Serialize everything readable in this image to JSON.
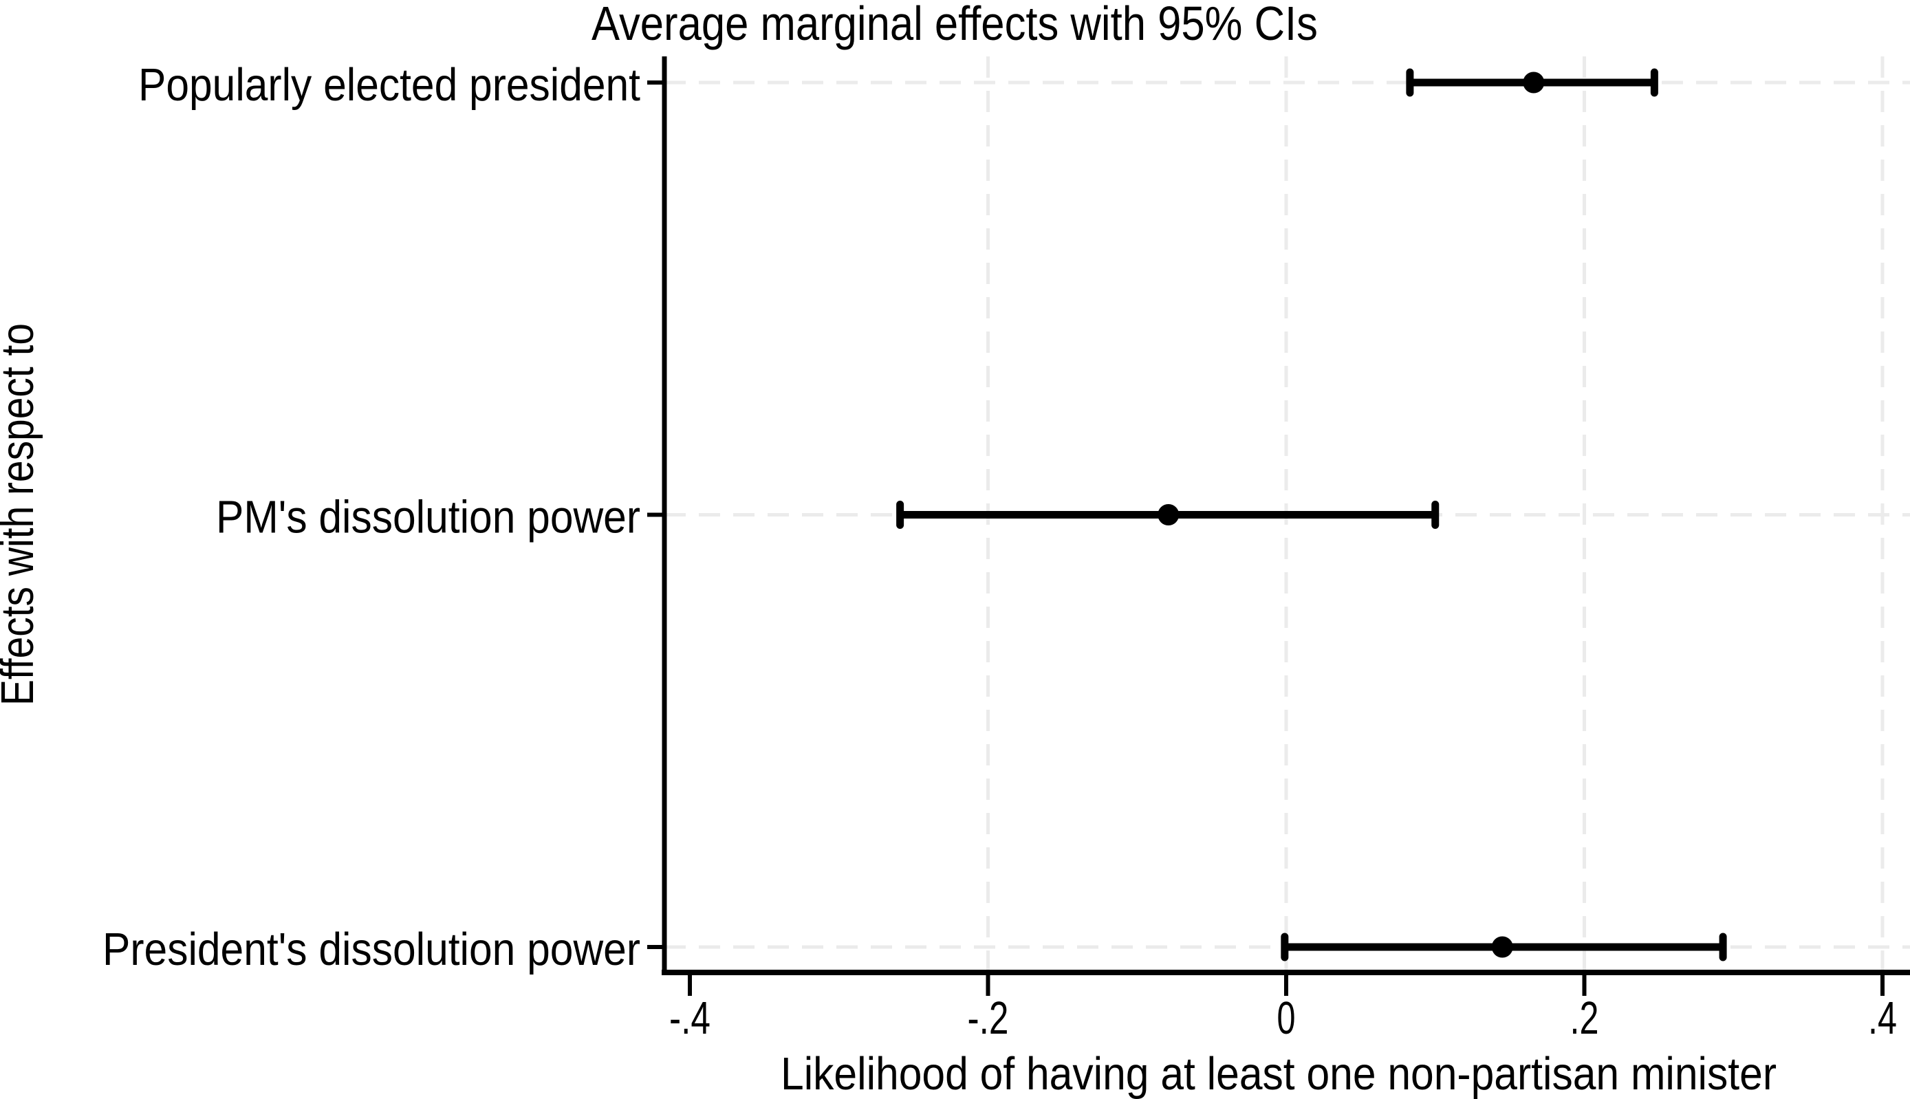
{
  "figure": {
    "background_color": "#ffffff",
    "text_color": "#000000",
    "grid_color": "#ebebeb",
    "marker_color": "#000000"
  },
  "chart_data": {
    "type": "scatter",
    "subtype": "coefficient-plot-with-95ci-error-bars",
    "title": "Average marginal effects with 95% CIs",
    "xlabel": "Likelihood of having at least one non-partisan minister",
    "ylabel": "Effects with respect to",
    "ci_level": "95%",
    "categories": [
      "Popularly elected president",
      "PM's dissolution power",
      "President's dissolution power"
    ],
    "series": [
      {
        "name": "Average marginal effect",
        "points": [
          {
            "category": "Popularly elected president",
            "estimate": 0.166,
            "ci_low": 0.083,
            "ci_high": 0.247
          },
          {
            "category": "PM's dissolution power",
            "estimate": -0.079,
            "ci_low": -0.259,
            "ci_high": 0.1
          },
          {
            "category": "President's dissolution power",
            "estimate": 0.145,
            "ci_low": -0.001,
            "ci_high": 0.293
          }
        ]
      }
    ],
    "x_ticks": [
      {
        "value": -0.4,
        "label": "-.4",
        "gridline": false
      },
      {
        "value": -0.2,
        "label": "-.2",
        "gridline": true
      },
      {
        "value": 0,
        "label": "0",
        "gridline": true
      },
      {
        "value": 0.2,
        "label": ".2",
        "gridline": true
      },
      {
        "value": 0.4,
        "label": ".4",
        "gridline": true
      }
    ],
    "xlim": [
      -0.417,
      0.418
    ],
    "grid": {
      "horizontal": true,
      "vertical": true,
      "style": "dashed"
    },
    "legend": null
  }
}
